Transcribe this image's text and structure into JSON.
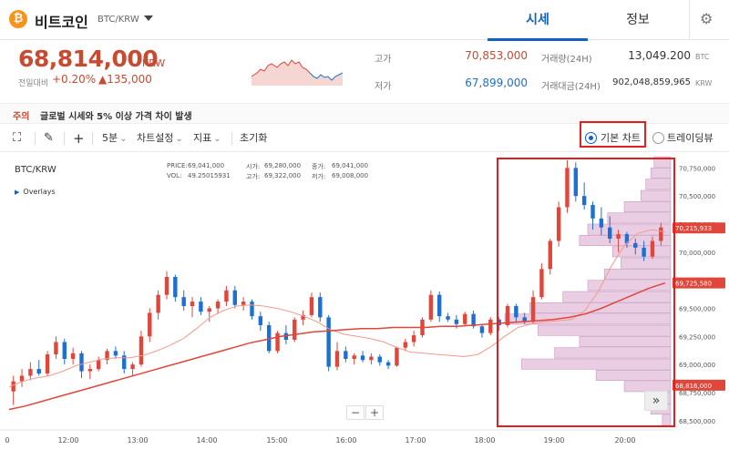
{
  "header": {
    "coin_icon": "₿",
    "coin_name": "비트코인",
    "pair": "BTC/KRW",
    "tabs": [
      {
        "label": "시세"
      },
      {
        "label": "정보"
      }
    ]
  },
  "ticker": {
    "price": "68,814,000",
    "unit": "KRW",
    "change_label": "전일대비",
    "change_pct": "+0.20%",
    "change_amt": "▲135,000",
    "stats": {
      "high_label": "고가",
      "high": "70,853,000",
      "low_label": "저가",
      "low": "67,899,000",
      "vol_label": "거래량(24H)",
      "vol": "13,049.200",
      "vol_unit": "BTC",
      "amt_label": "거래대금(24H)",
      "amt": "902,048,859,965",
      "amt_unit": "KRW"
    }
  },
  "notice": {
    "tag": "주의",
    "text": "글로벌 시세와 5% 이상 가격 차이 발생"
  },
  "toolbar": {
    "interval": "5분",
    "settings": "차트설정",
    "indicators": "지표",
    "reset": "초기화",
    "basic_chart": "기본 차트",
    "tradingview": "트레이딩뷰"
  },
  "chart_info": {
    "title": "BTC/KRW",
    "overlays": "Overlays",
    "price_label": "PRICE:",
    "price": "69,041,000",
    "open_label": "시가:",
    "open": "69,280,000",
    "close_label": "종가:",
    "close": "69,041,000",
    "vol_label": "VOL:",
    "vol": "49.25015931",
    "high_label": "고가:",
    "high": "69,322,000",
    "low_label": "저가:",
    "low": "69,008,000",
    "price_tag_top": "70,215,933",
    "price_tag_mid": "69,725,580",
    "price_tag_low": "68,816,000"
  },
  "colors": {
    "up": "#e0463a",
    "down": "#1d6fd1",
    "accent": "#1261c4",
    "profile": "#d7a4cc"
  },
  "chart_data": {
    "type": "candlestick",
    "x_ticks": [
      "0",
      "12:00",
      "13:00",
      "14:00",
      "15:00",
      "16:00",
      "17:00",
      "18:00",
      "19:00",
      "20:00"
    ],
    "y_ticks": [
      "70,750,000",
      "70,500,000",
      "70,250,000",
      "70,000,000",
      "69,750,000",
      "69,500,000",
      "69,250,000",
      "69,000,000",
      "68,750,000",
      "68,500,000"
    ],
    "ylim": [
      68450000,
      70850000
    ],
    "candles": [
      [
        68760000,
        68900000,
        68640000,
        68850000
      ],
      [
        68850000,
        68960000,
        68800000,
        68900000
      ],
      [
        68900000,
        69020000,
        68860000,
        68960000
      ],
      [
        68960000,
        69040000,
        68900000,
        68920000
      ],
      [
        68920000,
        69120000,
        68900000,
        69090000
      ],
      [
        69090000,
        69250000,
        69050000,
        69200000
      ],
      [
        69200000,
        69230000,
        69000000,
        69050000
      ],
      [
        69050000,
        69150000,
        69000000,
        69100000
      ],
      [
        69100000,
        69120000,
        68880000,
        68940000
      ],
      [
        68940000,
        69000000,
        68870000,
        68960000
      ],
      [
        68960000,
        69070000,
        68940000,
        69040000
      ],
      [
        69040000,
        69140000,
        69000000,
        69120000
      ],
      [
        69120000,
        69160000,
        69050000,
        69080000
      ],
      [
        69080000,
        69120000,
        68920000,
        68960000
      ],
      [
        68960000,
        69020000,
        68900000,
        69000000
      ],
      [
        69000000,
        69300000,
        68980000,
        69250000
      ],
      [
        69250000,
        69500000,
        69200000,
        69460000
      ],
      [
        69460000,
        69660000,
        69400000,
        69620000
      ],
      [
        69620000,
        69830000,
        69580000,
        69780000
      ],
      [
        69780000,
        69800000,
        69560000,
        69600000
      ],
      [
        69600000,
        69660000,
        69480000,
        69520000
      ],
      [
        69520000,
        69600000,
        69420000,
        69560000
      ],
      [
        69560000,
        69600000,
        69440000,
        69470000
      ],
      [
        69470000,
        69520000,
        69380000,
        69500000
      ],
      [
        69500000,
        69580000,
        69450000,
        69560000
      ],
      [
        69560000,
        69700000,
        69520000,
        69660000
      ],
      [
        69660000,
        69700000,
        69500000,
        69530000
      ],
      [
        69530000,
        69600000,
        69480000,
        69560000
      ],
      [
        69560000,
        69580000,
        69400000,
        69430000
      ],
      [
        69430000,
        69470000,
        69300000,
        69350000
      ],
      [
        69350000,
        69380000,
        69100000,
        69120000
      ],
      [
        69120000,
        69300000,
        69100000,
        69280000
      ],
      [
        69280000,
        69350000,
        69180000,
        69220000
      ],
      [
        69220000,
        69420000,
        69200000,
        69400000
      ],
      [
        69400000,
        69480000,
        69350000,
        69440000
      ],
      [
        69440000,
        69640000,
        69420000,
        69600000
      ],
      [
        69600000,
        69640000,
        69380000,
        69420000
      ],
      [
        69420000,
        69440000,
        68940000,
        68980000
      ],
      [
        68980000,
        69200000,
        68950000,
        69120000
      ],
      [
        69120000,
        69160000,
        69020000,
        69050000
      ],
      [
        69050000,
        69100000,
        69000000,
        69080000
      ],
      [
        69080000,
        69120000,
        69020000,
        69040000
      ],
      [
        69040000,
        69100000,
        69000000,
        69070000
      ],
      [
        69070000,
        69090000,
        68990000,
        69020000
      ],
      [
        69020000,
        69040000,
        68960000,
        68990000
      ],
      [
        68990000,
        69160000,
        68980000,
        69150000
      ],
      [
        69150000,
        69230000,
        69120000,
        69200000
      ],
      [
        69200000,
        69300000,
        69160000,
        69260000
      ],
      [
        69260000,
        69420000,
        69240000,
        69400000
      ],
      [
        69400000,
        69660000,
        69380000,
        69620000
      ],
      [
        69620000,
        69650000,
        69380000,
        69430000
      ],
      [
        69430000,
        69460000,
        69380000,
        69400000
      ],
      [
        69400000,
        69440000,
        69320000,
        69360000
      ],
      [
        69360000,
        69470000,
        69340000,
        69450000
      ],
      [
        69450000,
        69480000,
        69320000,
        69340000
      ],
      [
        69340000,
        69360000,
        69240000,
        69280000
      ],
      [
        69280000,
        69420000,
        69260000,
        69400000
      ],
      [
        69400000,
        69420000,
        69300000,
        69350000
      ],
      [
        69350000,
        69540000,
        69330000,
        69520000
      ],
      [
        69520000,
        69540000,
        69380000,
        69420000
      ],
      [
        69420000,
        69460000,
        69360000,
        69380000
      ],
      [
        69380000,
        69660000,
        69360000,
        69600000
      ],
      [
        69600000,
        69900000,
        69580000,
        69850000
      ],
      [
        69850000,
        70120000,
        69800000,
        70100000
      ],
      [
        70100000,
        70450000,
        70050000,
        70400000
      ],
      [
        70400000,
        70820000,
        70350000,
        70750000
      ],
      [
        70750000,
        70800000,
        70450000,
        70500000
      ],
      [
        70500000,
        70620000,
        70380000,
        70420000
      ],
      [
        70420000,
        70450000,
        70200000,
        70300000
      ],
      [
        70300000,
        70400000,
        70150000,
        70220000
      ],
      [
        70220000,
        70320000,
        70080000,
        70120000
      ],
      [
        70120000,
        70200000,
        70000000,
        70160000
      ],
      [
        70160000,
        70180000,
        70040000,
        70080000
      ],
      [
        70080000,
        70120000,
        69980000,
        70040000
      ],
      [
        70040000,
        70100000,
        69920000,
        69960000
      ],
      [
        69960000,
        70140000,
        69940000,
        70100000
      ],
      [
        70100000,
        70260000,
        70060000,
        70220000
      ]
    ],
    "ma_short": [
      68800000,
      68850000,
      68880000,
      68900000,
      68940000,
      68990000,
      69020000,
      69050000,
      69060000,
      69060000,
      69080000,
      69120000,
      69170000,
      69230000,
      69320000,
      69420000,
      69480000,
      69520000,
      69530000,
      69520000,
      69500000,
      69470000,
      69430000,
      69380000,
      69310000,
      69270000,
      69250000,
      69230000,
      69200000,
      69150000,
      69110000,
      69100000,
      69090000,
      69080000,
      69070000,
      69090000,
      69160000,
      69250000,
      69330000,
      69360000,
      69380000,
      69390000,
      69400000,
      69480000,
      69650000,
      69880000,
      70070000,
      70170000,
      70200000,
      70180000
    ],
    "ma_long": [
      68600000,
      68630000,
      68670000,
      68710000,
      68750000,
      68790000,
      68830000,
      68870000,
      68910000,
      68950000,
      68990000,
      69030000,
      69070000,
      69110000,
      69150000,
      69190000,
      69220000,
      69250000,
      69270000,
      69290000,
      69300000,
      69310000,
      69320000,
      69320000,
      69330000,
      69330000,
      69330000,
      69340000,
      69340000,
      69350000,
      69360000,
      69370000,
      69380000,
      69390000,
      69400000,
      69420000,
      69450000,
      69500000,
      69560000,
      69620000,
      69680000,
      69725580
    ],
    "profile": [
      [
        68500000,
        0.05
      ],
      [
        68600000,
        0.12
      ],
      [
        68700000,
        0.1
      ],
      [
        68800000,
        0.28
      ],
      [
        68900000,
        0.45
      ],
      [
        69000000,
        0.9
      ],
      [
        69100000,
        0.7
      ],
      [
        69200000,
        0.55
      ],
      [
        69300000,
        0.8
      ],
      [
        69400000,
        1.0
      ],
      [
        69500000,
        0.85
      ],
      [
        69600000,
        0.65
      ],
      [
        69700000,
        0.5
      ],
      [
        69800000,
        0.4
      ],
      [
        69900000,
        0.3
      ],
      [
        70000000,
        0.35
      ],
      [
        70100000,
        0.55
      ],
      [
        70200000,
        0.5
      ],
      [
        70300000,
        0.38
      ],
      [
        70400000,
        0.28
      ],
      [
        70500000,
        0.18
      ],
      [
        70600000,
        0.15
      ],
      [
        70700000,
        0.12
      ],
      [
        70800000,
        0.1
      ]
    ]
  }
}
